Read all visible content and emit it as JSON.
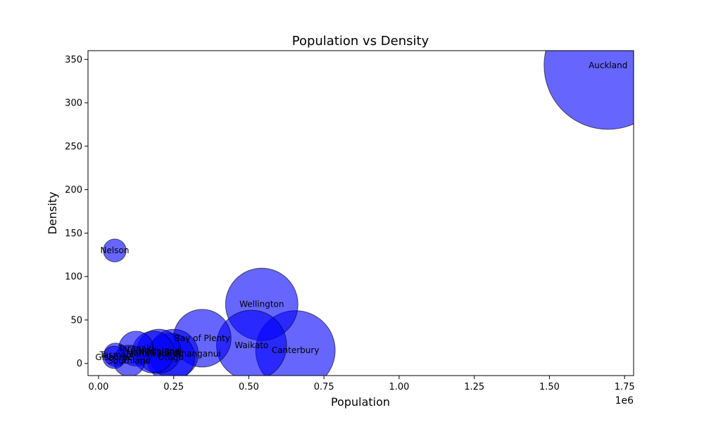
{
  "chart_data": {
    "type": "scatter",
    "title": "Population vs Density",
    "xlabel": "Population",
    "ylabel": "Density",
    "x_offset_label": "1e6",
    "xlim": [
      -35000,
      1780000
    ],
    "ylim": [
      -14,
      360
    ],
    "x_ticks": [
      0,
      250000,
      500000,
      750000,
      1000000,
      1250000,
      1500000,
      1750000
    ],
    "x_tick_labels": [
      "0.00",
      "0.25",
      "0.50",
      "0.75",
      "1.00",
      "1.25",
      "1.50",
      "1.75"
    ],
    "y_ticks": [
      0,
      50,
      100,
      150,
      200,
      250,
      300,
      350
    ],
    "y_tick_labels": [
      "0",
      "50",
      "100",
      "150",
      "200",
      "250",
      "300",
      "350"
    ],
    "grid": false,
    "marker_color": "#0000ff",
    "marker_alpha": 0.6,
    "marker_edge_color": "#000000",
    "points": [
      {
        "label": "Auckland",
        "x": 1695000,
        "y": 343
      },
      {
        "label": "Canterbury",
        "x": 655000,
        "y": 15
      },
      {
        "label": "Wellington",
        "x": 543000,
        "y": 68
      },
      {
        "label": "Waikato",
        "x": 509000,
        "y": 21
      },
      {
        "label": "Bay of Plenty",
        "x": 345000,
        "y": 29
      },
      {
        "label": "Manawatu-Whanganui",
        "x": 250000,
        "y": 11
      },
      {
        "label": "Otago",
        "x": 240000,
        "y": 7
      },
      {
        "label": "Hawke's Bay",
        "x": 182000,
        "y": 13
      },
      {
        "label": "Northland",
        "x": 201000,
        "y": 14
      },
      {
        "label": "Tasman",
        "x": 57000,
        "y": 10
      },
      {
        "label": "Taranaki",
        "x": 125000,
        "y": 17
      },
      {
        "label": "Southland",
        "x": 102000,
        "y": 3
      },
      {
        "label": "Nelson",
        "x": 54000,
        "y": 130
      },
      {
        "label": "Gisborne",
        "x": 52000,
        "y": 7
      }
    ]
  }
}
